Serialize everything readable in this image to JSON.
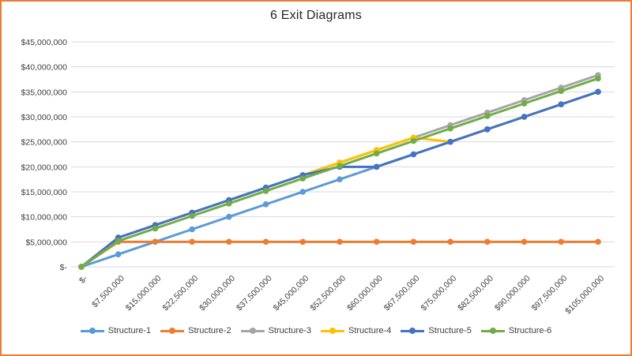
{
  "window": {
    "border_color": "#ED7D31",
    "background": "#FFFFFF"
  },
  "chart_data": {
    "type": "line",
    "title": "6 Exit Diagrams",
    "xlabel": "",
    "ylabel": "",
    "grid": "horizontal",
    "gridline_color": "#D9D9D9",
    "axis_label_color": "#404040",
    "title_color": "#262626",
    "legend_position": "bottom",
    "ylim": [
      0,
      45000000
    ],
    "y_tick_step": 5000000,
    "y_tick_labels": [
      "$-",
      "$5,000,000",
      "$10,000,000",
      "$15,000,000",
      "$20,000,000",
      "$25,000,000",
      "$30,000,000",
      "$35,000,000",
      "$40,000,000",
      "$45,000,000"
    ],
    "x_values": [
      0,
      7500000,
      15000000,
      22500000,
      30000000,
      37500000,
      45000000,
      52500000,
      60000000,
      67500000,
      75000000,
      82500000,
      90000000,
      97500000,
      105000000
    ],
    "x_tick_labels": [
      "$-",
      "$7,500,000",
      "$15,000,000",
      "$22,500,000",
      "$30,000,000",
      "$37,500,000",
      "$45,000,000",
      "$52,500,000",
      "$60,000,000",
      "$67,500,000",
      "$75,000,000",
      "$82,500,000",
      "$90,000,000",
      "$97,500,000",
      "$105,000,000"
    ],
    "series": [
      {
        "name": "Structure-1",
        "color": "#5B9BD5",
        "marker": "circle",
        "values": [
          0,
          2500000,
          5000000,
          7500000,
          10000000,
          12500000,
          15000000,
          17500000,
          20000000,
          22500000,
          25000000,
          27500000,
          30000000,
          32500000,
          35000000
        ]
      },
      {
        "name": "Structure-2",
        "color": "#ED7D31",
        "marker": "circle",
        "values": [
          0,
          5000000,
          5000000,
          5000000,
          5000000,
          5000000,
          5000000,
          5000000,
          5000000,
          5000000,
          5000000,
          5000000,
          5000000,
          5000000,
          5000000
        ]
      },
      {
        "name": "Structure-3",
        "color": "#A5A5A5",
        "marker": "circle",
        "values": [
          0,
          5833333,
          8333333,
          10833333,
          13333333,
          15833333,
          18333333,
          20833333,
          23333333,
          25833333,
          28333333,
          30833333,
          33333333,
          35833333,
          38333333
        ]
      },
      {
        "name": "Structure-4",
        "color": "#FFC000",
        "marker": "circle",
        "values": [
          0,
          5833333,
          8333333,
          10833333,
          13333333,
          15833333,
          18333333,
          20833333,
          23333333,
          25833333,
          25000000,
          27500000,
          30000000,
          32500000,
          35000000
        ]
      },
      {
        "name": "Structure-5",
        "color": "#4472C4",
        "marker": "circle",
        "values": [
          0,
          5833333,
          8333333,
          10833333,
          13333333,
          15833333,
          18333333,
          20000000,
          20000000,
          22500000,
          25000000,
          27500000,
          30000000,
          32500000,
          35000000
        ]
      },
      {
        "name": "Structure-6",
        "color": "#70AD47",
        "marker": "circle",
        "values": [
          0,
          5166667,
          7666667,
          10166667,
          12666667,
          15166667,
          17666667,
          20166667,
          22666667,
          25166667,
          27666667,
          30166667,
          32666667,
          35166667,
          37666667
        ]
      }
    ]
  }
}
